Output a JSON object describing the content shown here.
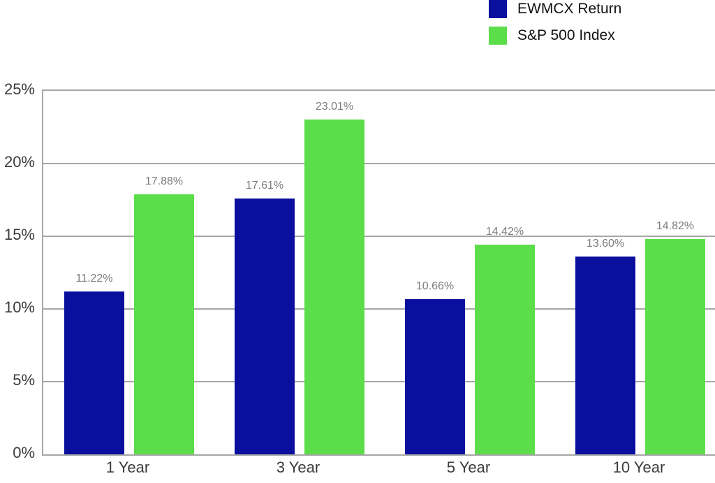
{
  "chart_data": {
    "type": "bar",
    "title": "",
    "categories": [
      "1 Year",
      "3 Year",
      "5 Year",
      "10 Year"
    ],
    "series": [
      {
        "name": "EWMCX Return",
        "color": "#0a0f9e",
        "values": [
          11.22,
          17.61,
          10.66,
          13.6
        ],
        "labels": [
          "11.22%",
          "17.61%",
          "10.66%",
          "13.60%"
        ]
      },
      {
        "name": "S&P 500 Index",
        "color": "#5cdd4a",
        "values": [
          17.88,
          23.01,
          14.42,
          14.82
        ],
        "labels": [
          "17.88%",
          "23.01%",
          "14.42%",
          "14.82%"
        ]
      }
    ],
    "xlabel": "",
    "ylabel": "",
    "ylim": [
      0,
      25
    ],
    "yticks": [
      "0%",
      "5%",
      "10%",
      "15%",
      "20%",
      "25%"
    ],
    "grid": true,
    "legend_position": "top-right"
  },
  "colors": {
    "ewmcx_blue": "#0a0f9e",
    "sp500_green": "#5cdd4a",
    "axis_text": "#3b3b3b",
    "value_label_gray": "#7c7c7c",
    "grid_gray": "#a6a6a6",
    "background": "#ffffff"
  }
}
